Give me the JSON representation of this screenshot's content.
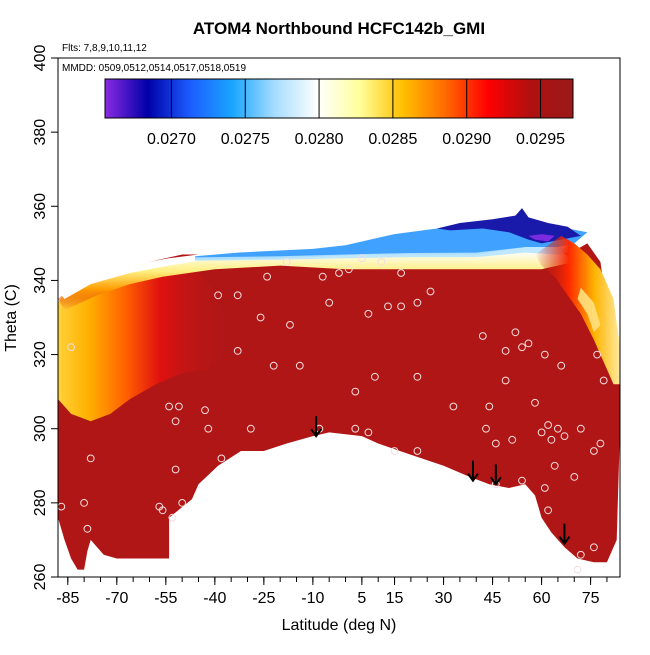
{
  "chart_data": {
    "type": "heatmap",
    "title": "ATOM4 Northbound HCFC142b_GMI",
    "subtitle_lines": [
      "Flts: 7,8,9,10,11,12",
      "MMDD: 0509,0512,0514,0517,0518,0519"
    ],
    "xlabel": "Latitude (deg N)",
    "ylabel": "Theta (C)",
    "xlim": [
      -88,
      84
    ],
    "ylim": [
      260,
      400
    ],
    "x_ticks": [
      -85,
      -70,
      -55,
      -40,
      -25,
      -10,
      5,
      15,
      30,
      45,
      60,
      75
    ],
    "y_ticks": [
      260,
      280,
      300,
      320,
      340,
      360,
      380,
      400
    ],
    "colorbar": {
      "range": [
        0.02655,
        0.02972
      ],
      "ticks": [
        "0.0270",
        "0.0275",
        "0.0280",
        "0.0285",
        "0.0290",
        "0.0295"
      ],
      "tick_values": [
        0.027,
        0.0275,
        0.028,
        0.0285,
        0.029,
        0.0295
      ],
      "colors": [
        "#8a2be2",
        "#0000a8",
        "#1c5cff",
        "#1aa6ff",
        "#a8ddff",
        "#ffffff",
        "#ffff9a",
        "#ffc000",
        "#ff6a00",
        "#ff0000",
        "#b01010",
        "#9a1a1a"
      ]
    },
    "field_colors": {
      "main": "#b11616",
      "low_lat_south": "#ffcc33",
      "top_edge": "#ffffff",
      "top_blue": "#1e90ff",
      "top_dark_blue": "#1a1aaa"
    },
    "sample_points": [
      [
        -87,
        279
      ],
      [
        -80,
        280
      ],
      [
        -79,
        273
      ],
      [
        -78,
        292
      ],
      [
        -84,
        322
      ],
      [
        -57,
        279
      ],
      [
        -56,
        278
      ],
      [
        -53,
        276
      ],
      [
        -50,
        280
      ],
      [
        -52,
        289
      ],
      [
        -52,
        302
      ],
      [
        -51,
        306
      ],
      [
        -54,
        306
      ],
      [
        -43,
        305
      ],
      [
        -42,
        300
      ],
      [
        -38,
        292
      ],
      [
        -39,
        336
      ],
      [
        -33,
        336
      ],
      [
        -33,
        321
      ],
      [
        -26,
        330
      ],
      [
        -24,
        341
      ],
      [
        -18,
        345
      ],
      [
        -22,
        317
      ],
      [
        -14,
        317
      ],
      [
        -17,
        328
      ],
      [
        -29,
        300
      ],
      [
        -7,
        341
      ],
      [
        -5,
        334
      ],
      [
        -2,
        342
      ],
      [
        3,
        310
      ],
      [
        1,
        343
      ],
      [
        5,
        346
      ],
      [
        7,
        331
      ],
      [
        9,
        314
      ],
      [
        11,
        345
      ],
      [
        3,
        300
      ],
      [
        7,
        299
      ],
      [
        13,
        333
      ],
      [
        15,
        294
      ],
      [
        17,
        333
      ],
      [
        17,
        342
      ],
      [
        22,
        334
      ],
      [
        22,
        314
      ],
      [
        22,
        294
      ],
      [
        26,
        337
      ],
      [
        -8,
        300
      ],
      [
        33,
        306
      ],
      [
        42,
        325
      ],
      [
        43,
        300
      ],
      [
        44,
        306
      ],
      [
        46,
        296
      ],
      [
        46,
        285
      ],
      [
        49,
        313
      ],
      [
        51,
        297
      ],
      [
        49,
        321
      ],
      [
        52,
        326
      ],
      [
        54,
        322
      ],
      [
        54,
        286
      ],
      [
        56,
        323
      ],
      [
        58,
        307
      ],
      [
        60,
        299
      ],
      [
        61,
        320
      ],
      [
        61,
        284
      ],
      [
        62,
        301
      ],
      [
        63,
        297
      ],
      [
        64,
        290
      ],
      [
        65,
        300
      ],
      [
        66,
        317
      ],
      [
        67,
        298
      ],
      [
        70,
        287
      ],
      [
        72,
        300
      ],
      [
        72,
        266
      ],
      [
        76,
        294
      ],
      [
        77,
        320
      ],
      [
        79,
        313
      ],
      [
        78,
        296
      ],
      [
        76,
        268
      ],
      [
        62,
        278
      ],
      [
        71,
        262
      ]
    ],
    "arrows": [
      {
        "lat": -9,
        "theta": 298
      },
      {
        "lat": 39,
        "theta": 286
      },
      {
        "lat": 46,
        "theta": 285
      },
      {
        "lat": 67,
        "theta": 269
      }
    ]
  }
}
